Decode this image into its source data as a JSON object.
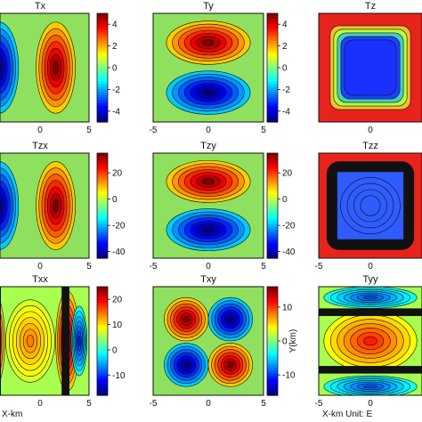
{
  "chart_data": [
    {
      "type": "heatmap",
      "title": "Tx",
      "pattern": "x-dipole",
      "field": "blue-red",
      "xticks": [
        "0",
        "5"
      ],
      "yticks": [],
      "colorbar": {
        "ticks": [
          "4",
          "2",
          "0",
          "-2",
          "-4"
        ],
        "range": [
          -5,
          5
        ]
      }
    },
    {
      "type": "heatmap",
      "title": "Ty",
      "pattern": "y-dipole",
      "field": "blue-red",
      "xticks": [
        "-5",
        "0",
        "5"
      ],
      "yticks": [],
      "colorbar": {
        "ticks": [
          "4",
          "2",
          "0",
          "-2",
          "-4"
        ],
        "range": [
          -5,
          5
        ]
      }
    },
    {
      "type": "heatmap",
      "title": "Tz",
      "pattern": "square-low",
      "field": "blue-red",
      "xticks": [
        "0"
      ],
      "yticks": [],
      "colorbar": null
    },
    {
      "type": "heatmap",
      "title": "Tzx",
      "pattern": "x-dipole",
      "field": "blue-red",
      "xticks": [
        "0",
        "5"
      ],
      "yticks": [],
      "colorbar": {
        "ticks": [
          "20",
          "0",
          "-20",
          "-40"
        ],
        "range": [
          -45,
          35
        ]
      }
    },
    {
      "type": "heatmap",
      "title": "Tzy",
      "pattern": "y-dipole",
      "field": "red-blue",
      "xticks": [
        "-5",
        "0",
        "5"
      ],
      "yticks": [],
      "colorbar": {
        "ticks": [
          "20",
          "0",
          "-20",
          "-40"
        ],
        "range": [
          -45,
          35
        ]
      }
    },
    {
      "type": "heatmap",
      "title": "Tzz",
      "pattern": "square-ring",
      "field": "blue-red",
      "xticks": [
        "-5",
        "0"
      ],
      "yticks": [],
      "colorbar": null
    },
    {
      "type": "heatmap",
      "title": "Txx",
      "pattern": "x-quad",
      "field": "blue-red",
      "xticks": [
        "0",
        "5"
      ],
      "yticks": [],
      "xlabel": "X-km",
      "colorbar": {
        "ticks": [
          "20",
          "10",
          "0",
          "-10"
        ],
        "range": [
          -18,
          25
        ]
      }
    },
    {
      "type": "heatmap",
      "title": "Txy",
      "pattern": "four-lobe",
      "field": "blue-red",
      "xticks": [
        "-5",
        "0",
        "5"
      ],
      "yticks": [],
      "colorbar": {
        "ticks": [
          "10",
          "0",
          "-10"
        ],
        "range": [
          -16,
          16
        ]
      }
    },
    {
      "type": "heatmap",
      "title": "Tyy",
      "pattern": "y-quad",
      "field": "blue-red",
      "xticks": [
        "-5",
        "0"
      ],
      "yticks": [],
      "xlabel": "X-km Unit: E",
      "ylabel": "Y(km)",
      "colorbar": null
    }
  ]
}
